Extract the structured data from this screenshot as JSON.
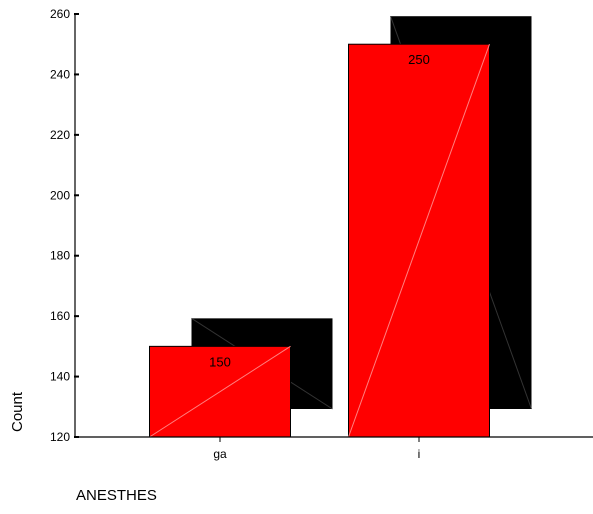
{
  "chart_data": {
    "type": "bar",
    "categories": [
      "ga",
      "i"
    ],
    "values": [
      150,
      250
    ],
    "value_labels": [
      "150",
      "250"
    ],
    "xlabel": "ANESTHES",
    "ylabel": "Count",
    "ylim": [
      120,
      260
    ],
    "yticks": [
      120,
      140,
      160,
      180,
      200,
      220,
      240,
      260
    ],
    "grid": false,
    "style": "3d",
    "colors": {
      "bar": "#ff0000",
      "bar_outline": "#000000",
      "shadow": "#000000",
      "diagonal": "#ff8080"
    }
  }
}
